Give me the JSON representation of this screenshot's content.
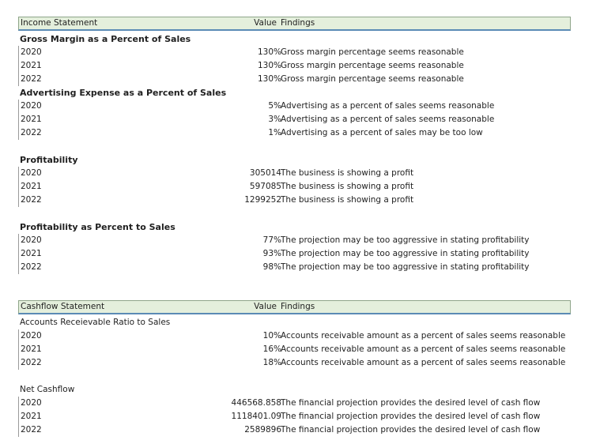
{
  "income": {
    "header": {
      "label": "Income Statement",
      "value": "Value",
      "findings": "Findings"
    },
    "sections": [
      {
        "title": "Gross Margin as a Percent of Sales",
        "rows": [
          {
            "year": "2020",
            "value": "130%",
            "finding": "Gross margin percentage seems reasonable"
          },
          {
            "year": "2021",
            "value": "130%",
            "finding": "Gross margin percentage seems reasonable"
          },
          {
            "year": "2022",
            "value": "130%",
            "finding": "Gross margin percentage seems reasonable"
          }
        ]
      },
      {
        "title": "Advertising Expense as a Percent of Sales",
        "rows": [
          {
            "year": "2020",
            "value": "5%",
            "finding": "Advertising as a percent of sales seems reasonable"
          },
          {
            "year": "2021",
            "value": "3%",
            "finding": "Advertising as a percent of sales seems reasonable"
          },
          {
            "year": "2022",
            "value": "1%",
            "finding": "Advertising as a percent of sales may be too low"
          }
        ]
      },
      {
        "title": "Profitability",
        "rows": [
          {
            "year": "2020",
            "value": "305014",
            "finding": "The business is showing a profit"
          },
          {
            "year": "2021",
            "value": "597085",
            "finding": "The business is showing a profit"
          },
          {
            "year": "2022",
            "value": "1299252",
            "finding": "The business is showing a profit"
          }
        ]
      },
      {
        "title": "Profitability as Percent to Sales",
        "rows": [
          {
            "year": "2020",
            "value": "77%",
            "finding": "The projection may be too aggressive in stating profitability"
          },
          {
            "year": "2021",
            "value": "93%",
            "finding": "The projection may be too aggressive in stating profitability"
          },
          {
            "year": "2022",
            "value": "98%",
            "finding": "The projection may be too aggressive in stating profitability"
          }
        ]
      }
    ]
  },
  "cashflow": {
    "header": {
      "label": "Cashflow Statement",
      "value": "Value",
      "findings": "Findings"
    },
    "sections": [
      {
        "title": "Accounts Receievable Ratio to Sales",
        "rows": [
          {
            "year": "2020",
            "value": "10%",
            "finding": "Accounts receivable amount as a percent of sales seems reasonable"
          },
          {
            "year": "2021",
            "value": "16%",
            "finding": "Accounts receivable amount as a percent of sales seems reasonable"
          },
          {
            "year": "2022",
            "value": "18%",
            "finding": "Accounts receivable amount as a percent of sales seems reasonable"
          }
        ]
      },
      {
        "title": "Net Cashflow",
        "rows": [
          {
            "year": "2020",
            "value": "446568.858",
            "finding": "The financial projection provides the desired level of cash flow"
          },
          {
            "year": "2021",
            "value": "1118401.09",
            "finding": "The financial projection provides the desired level of cash flow"
          },
          {
            "year": "2022",
            "value": "2589896",
            "finding": "The financial projection provides the desired level of cash flow"
          }
        ]
      }
    ]
  }
}
